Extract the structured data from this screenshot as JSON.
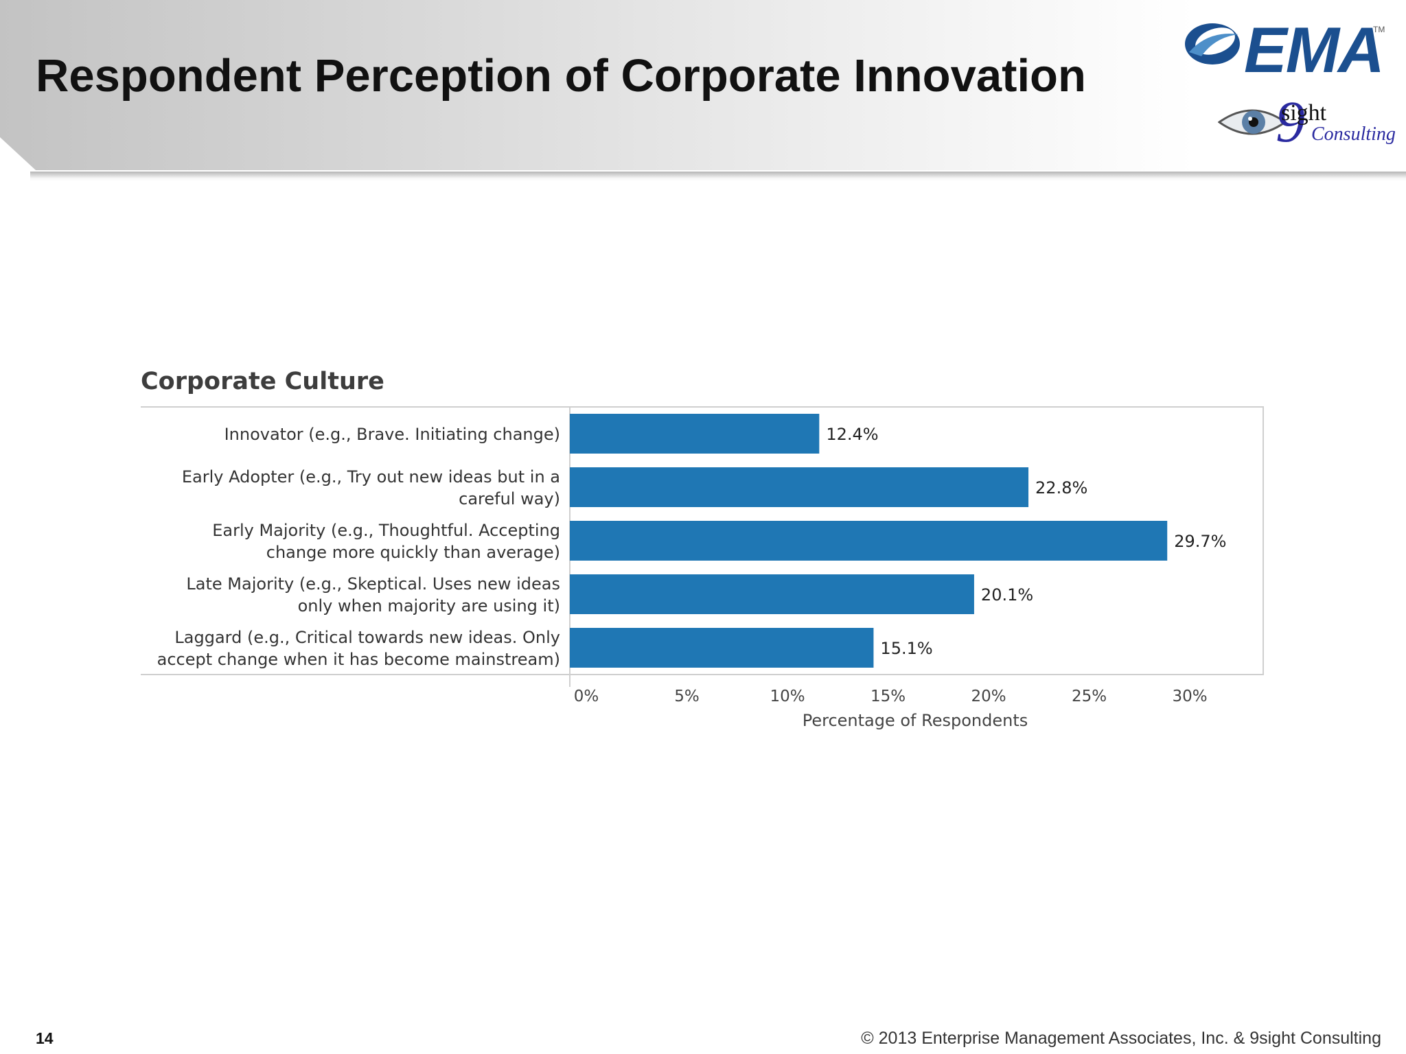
{
  "slide": {
    "title": "Respondent Perception of Corporate Innovation",
    "page_number": "14",
    "copyright": "© 2013 Enterprise Management Associates, Inc. & 9sight Consulting"
  },
  "logos": {
    "ema_text": "EMA",
    "ema_tm": "TM",
    "ema_color": "#1b4f8f",
    "nsight_nine": "9",
    "nsight_sight": "sight",
    "nsight_consulting": "Consulting"
  },
  "chart_data": {
    "type": "bar",
    "orientation": "horizontal",
    "title": "Corporate Culture",
    "xlabel": "Percentage of Respondents",
    "ylabel": "",
    "categories": [
      [
        "Innovator  (e.g., Brave. Initiating change)"
      ],
      [
        "Early Adopter (e.g., Try out new ideas but in a",
        "careful way)"
      ],
      [
        "Early Majority (e.g.,  Thoughtful. Accepting",
        "change more quickly than average)"
      ],
      [
        "Late Majority (e.g.,  Skeptical. Uses new ideas",
        "only when majority are using it)"
      ],
      [
        "Laggard (e.g.,  Critical towards new ideas. Only",
        "accept change when it has become mainstream)"
      ]
    ],
    "values": [
      12.4,
      22.8,
      29.7,
      20.1,
      15.1
    ],
    "value_labels": [
      "12.4%",
      "22.8%",
      "29.7%",
      "20.1%",
      "15.1%"
    ],
    "xlim": [
      0,
      34
    ],
    "xticks": [
      0,
      5,
      10,
      15,
      20,
      25,
      30
    ],
    "xtick_labels": [
      "0%",
      "5%",
      "10%",
      "15%",
      "20%",
      "25%",
      "30%"
    ],
    "bar_color": "#1f77b4",
    "grid": false,
    "legend": "none"
  }
}
